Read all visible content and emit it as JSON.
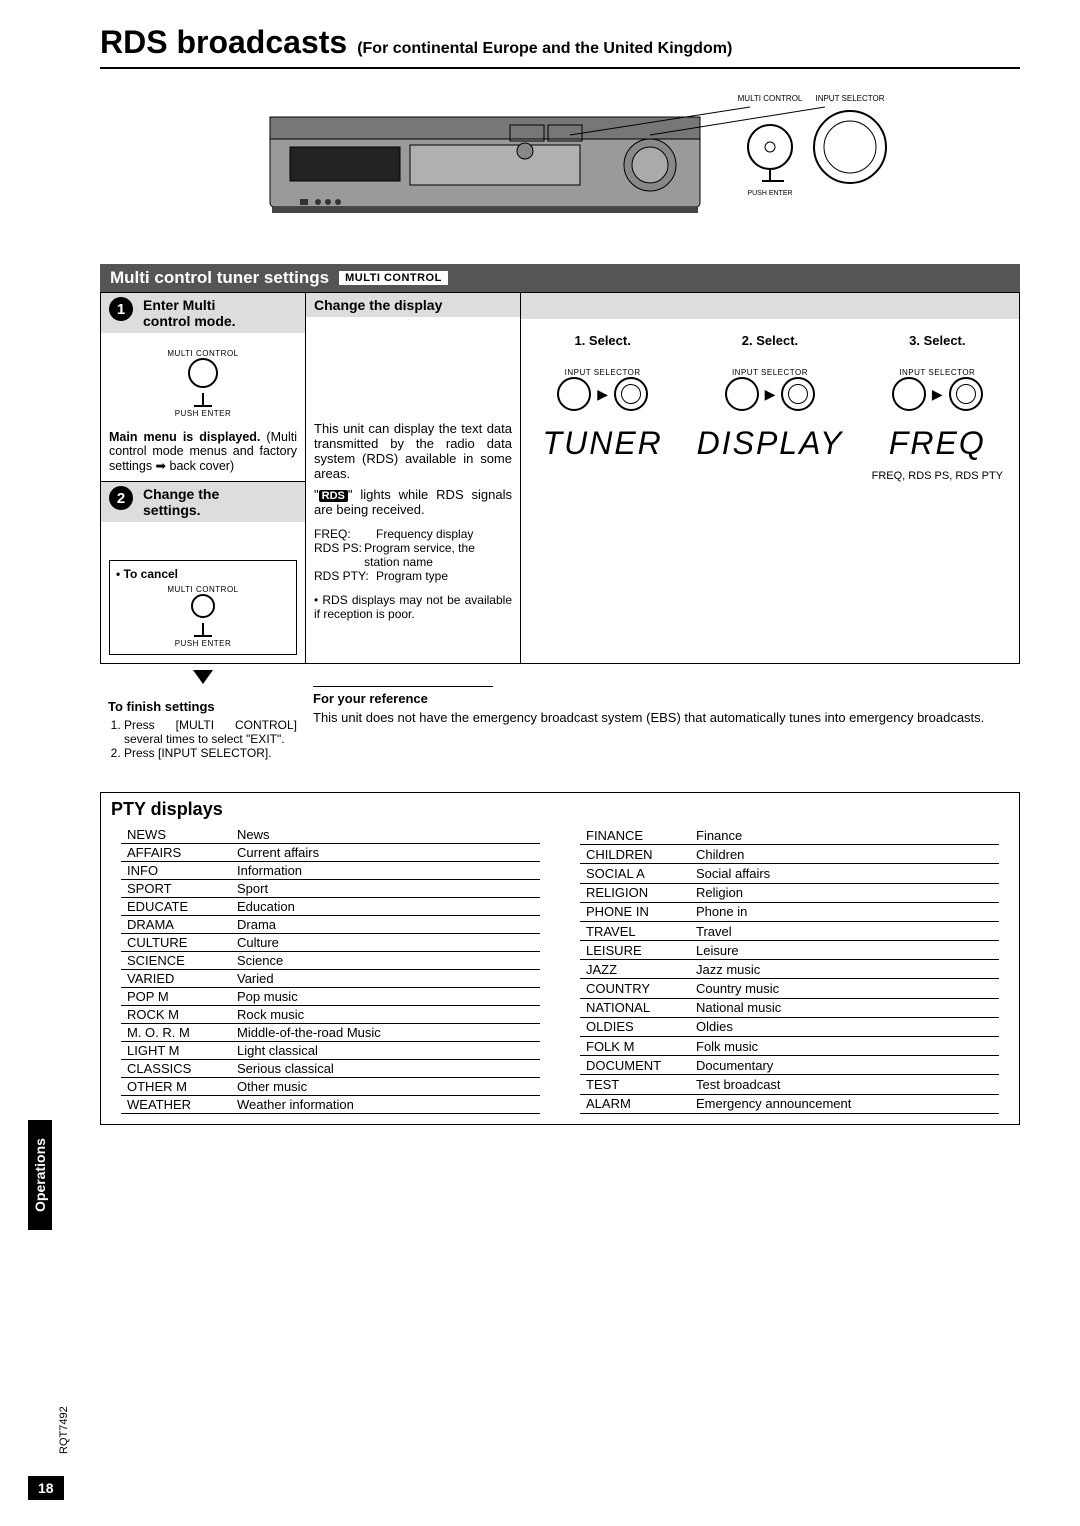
{
  "title": {
    "main": "RDS broadcasts",
    "sub": "(For continental Europe and the United Kingdom)"
  },
  "device_labels": {
    "multi_control": "MULTI CONTROL",
    "input_selector": "INPUT SELECTOR",
    "push_enter": "PUSH ENTER"
  },
  "section_bar": {
    "heading": "Multi control tuner settings",
    "badge": "MULTI CONTROL"
  },
  "left": {
    "step1_title_a": "Enter Multi",
    "step1_title_b": "control mode.",
    "multi_label": "MULTI CONTROL",
    "push_label": "PUSH ENTER",
    "main_menu_bold": "Main menu is displayed.",
    "main_menu_rest": "(Multi control mode menus and factory settings ➡ back cover)",
    "step2_title_a": "Change the",
    "step2_title_b": "settings.",
    "cancel_title": "• To cancel",
    "finish_head": "To finish settings",
    "finish_1": "Press [MULTI CONTROL] several times to select \"EXIT\".",
    "finish_2": "Press [INPUT SELECTOR]."
  },
  "center": {
    "head": "Change the display",
    "para1": "This unit can display the text data transmitted by the radio data system (RDS) available in some areas.",
    "para2_pre": "\"",
    "para2_badge": "RDS",
    "para2_post": "\" lights while RDS signals are being received.",
    "defs": {
      "freq_k": "FREQ:",
      "freq_v": "Frequency display",
      "ps_k": "RDS PS:",
      "ps_v": "Program service, the station name",
      "pty_k": "RDS PTY:",
      "pty_v": "Program type"
    },
    "note": "• RDS displays may not be available if reception is poor."
  },
  "right": {
    "s1": "1. Select.",
    "s2": "2. Select.",
    "s3": "3. Select.",
    "w1": "TUNER",
    "w2": "DISPLAY",
    "w3": "FREQ",
    "sub3": "FREQ, RDS PS, RDS PTY",
    "jog_cap": "INPUT SELECTOR"
  },
  "reference": {
    "head": "For your reference",
    "body": "This unit does not have the emergency broadcast system (EBS) that automatically tunes into emergency broadcasts."
  },
  "pty": {
    "head": "PTY displays",
    "left": [
      [
        "NEWS",
        "News"
      ],
      [
        "AFFAIRS",
        "Current affairs"
      ],
      [
        "INFO",
        "Information"
      ],
      [
        "SPORT",
        "Sport"
      ],
      [
        "EDUCATE",
        "Education"
      ],
      [
        "DRAMA",
        "Drama"
      ],
      [
        "CULTURE",
        "Culture"
      ],
      [
        "SCIENCE",
        "Science"
      ],
      [
        "VARIED",
        "Varied"
      ],
      [
        "POP M",
        "Pop music"
      ],
      [
        "ROCK M",
        "Rock music"
      ],
      [
        "M. O. R. M",
        "Middle-of-the-road Music"
      ],
      [
        "LIGHT M",
        "Light classical"
      ],
      [
        "CLASSICS",
        "Serious classical"
      ],
      [
        "OTHER M",
        "Other music"
      ],
      [
        "WEATHER",
        "Weather information"
      ]
    ],
    "right": [
      [
        "FINANCE",
        "Finance"
      ],
      [
        "CHILDREN",
        "Children"
      ],
      [
        "SOCIAL A",
        "Social affairs"
      ],
      [
        "RELIGION",
        "Religion"
      ],
      [
        "PHONE IN",
        "Phone in"
      ],
      [
        "TRAVEL",
        "Travel"
      ],
      [
        "LEISURE",
        "Leisure"
      ],
      [
        "JAZZ",
        "Jazz music"
      ],
      [
        "COUNTRY",
        "Country music"
      ],
      [
        "NATIONAL",
        "National music"
      ],
      [
        "OLDIES",
        "Oldies"
      ],
      [
        "FOLK M",
        "Folk music"
      ],
      [
        "DOCUMENT",
        "Documentary"
      ],
      [
        "TEST",
        "Test broadcast"
      ],
      [
        "ALARM",
        "Emergency announcement"
      ]
    ]
  },
  "footer": {
    "tab": "Operations",
    "page": "18",
    "code": "RQT7492"
  }
}
